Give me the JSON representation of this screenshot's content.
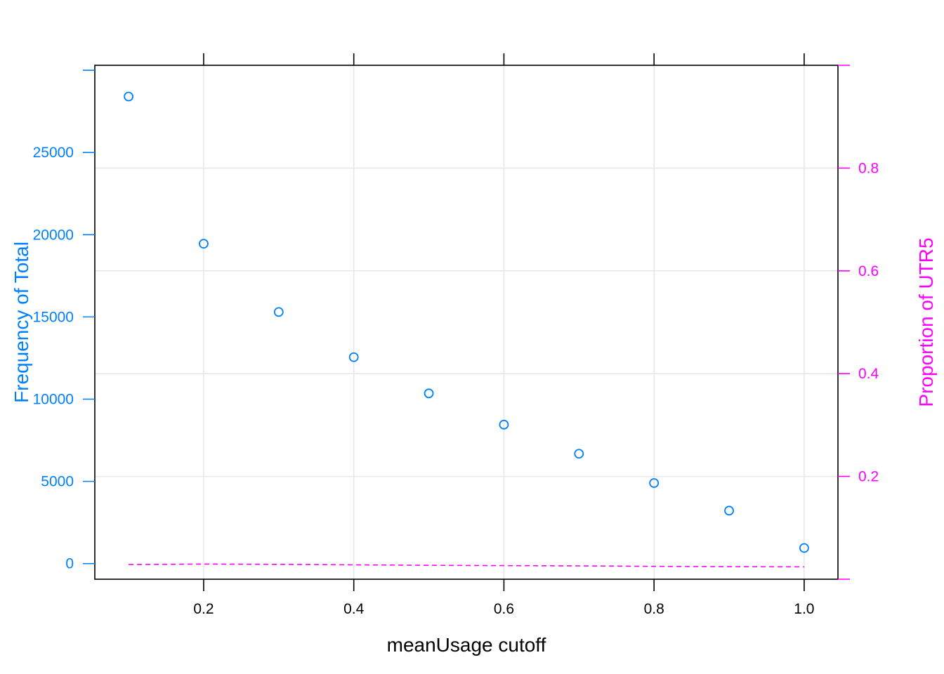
{
  "colors": {
    "left_axis": "#0080ff",
    "right_axis": "#ff00ff",
    "grid": "#e6e6e6",
    "frame": "#000000",
    "bottom_axis": "#000000"
  },
  "chart_data": {
    "type": "scatter",
    "xlabel": "meanUsage cutoff",
    "ylabel_left": "Frequency of Total",
    "ylabel_right": "Proportion of UTR5",
    "xlim": [
      0.055,
      1.045
    ],
    "ylim_left": [
      -950,
      30300
    ],
    "ylim_right": [
      0.0,
      1.0
    ],
    "x_ticks": [
      "0.2",
      "0.4",
      "0.6",
      "0.8",
      "1.0"
    ],
    "y_left_ticks": [
      "0",
      "5000",
      "10000",
      "15000",
      "20000",
      "25000"
    ],
    "y_right_ticks": [
      "0.2",
      "0.4",
      "0.6",
      "0.8"
    ],
    "grid": true,
    "series": [
      {
        "style": "points",
        "axis": "left",
        "x": [
          0.1,
          0.2,
          0.3,
          0.4,
          0.5,
          0.6,
          0.7,
          0.8,
          0.9,
          1.0
        ],
        "y": [
          28400,
          19450,
          15300,
          12550,
          10350,
          8450,
          6680,
          4900,
          3220,
          950
        ]
      },
      {
        "style": "dashed-line",
        "axis": "right",
        "x": [
          0.1,
          0.2,
          0.3,
          0.4,
          0.5,
          0.6,
          0.7,
          0.8,
          0.9,
          1.0
        ],
        "y": [
          0.0285,
          0.0295,
          0.029,
          0.028,
          0.027,
          0.0265,
          0.026,
          0.025,
          0.0245,
          0.024
        ]
      }
    ]
  }
}
